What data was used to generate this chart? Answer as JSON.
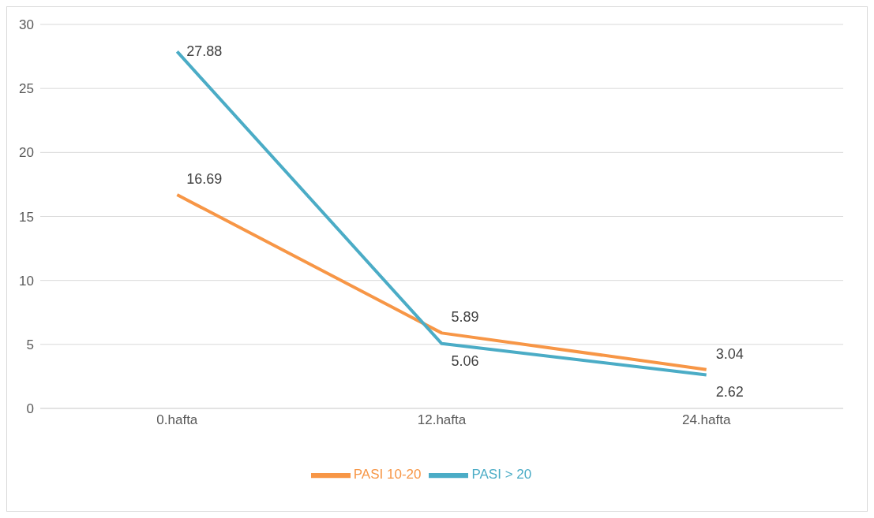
{
  "chart_data": {
    "type": "line",
    "categories": [
      "0.hafta",
      "12.hafta",
      "24.hafta"
    ],
    "series": [
      {
        "name": "PASI 10-20",
        "color": "#f79646",
        "values": [
          16.69,
          5.89,
          3.04
        ]
      },
      {
        "name": "PASI > 20",
        "color": "#4bacc6",
        "values": [
          27.88,
          5.06,
          2.62
        ]
      }
    ],
    "ylim": [
      0,
      30
    ],
    "yticks": [
      0,
      5,
      10,
      15,
      20,
      25,
      30
    ],
    "grid": "y",
    "legend": "bottom",
    "data_labels": true,
    "marker": "none",
    "line_style": "solid"
  }
}
